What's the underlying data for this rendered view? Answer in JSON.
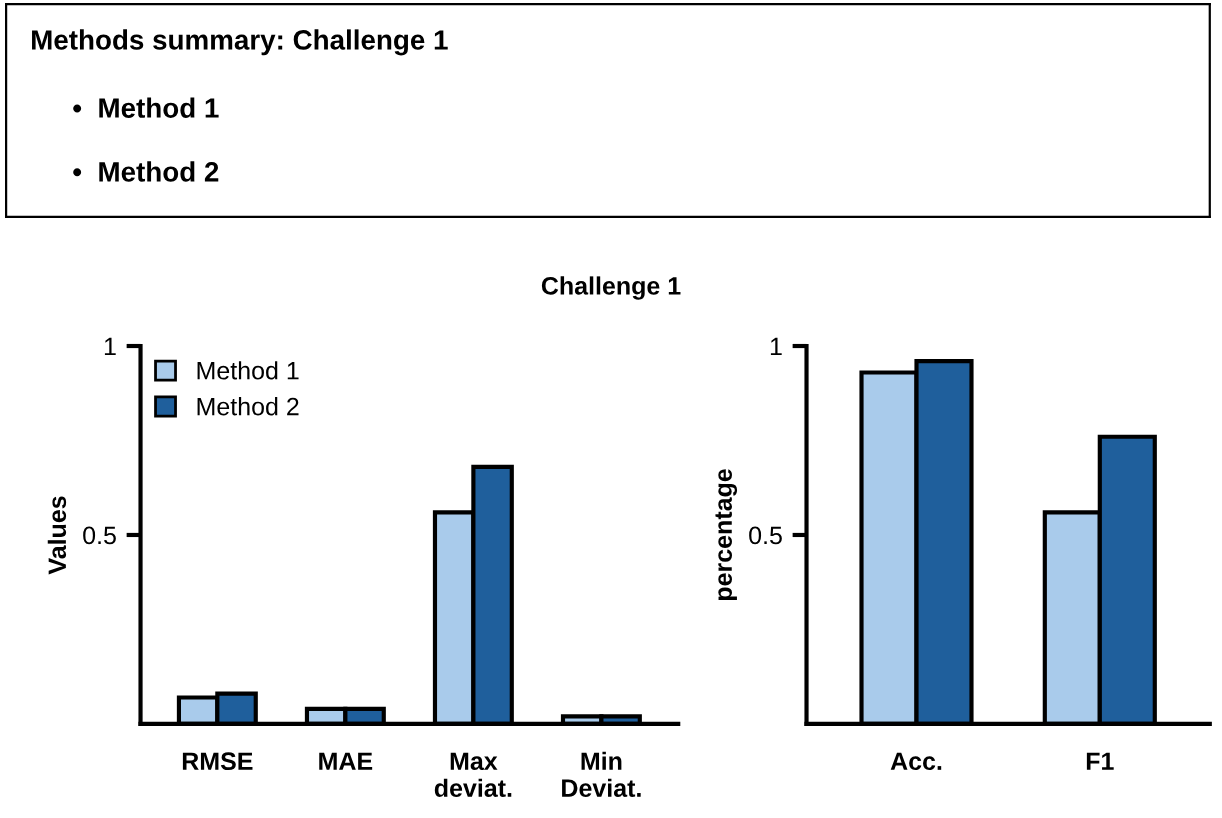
{
  "chart_data": [
    {
      "type": "bar",
      "title": "Challenge 1",
      "ylabel": "Values",
      "categories": [
        "RMSE",
        "MAE",
        "Max\ndeviat.",
        "Min\nDeviat."
      ],
      "series": [
        {
          "name": "Method 1",
          "color": "#a9cbeb",
          "values": [
            0.07,
            0.04,
            0.56,
            0.02
          ]
        },
        {
          "name": "Method 2",
          "color": "#1f5f9c",
          "values": [
            0.08,
            0.04,
            0.68,
            0.02
          ]
        }
      ],
      "ylim": [
        0,
        1
      ],
      "yticks": [
        0.5,
        1
      ],
      "legend": "top left",
      "grid": false
    },
    {
      "type": "bar",
      "ylabel": "percentage",
      "categories": [
        "Acc.",
        "F1"
      ],
      "annotations": [
        "Methods summary: Challenge 1",
        "•  Method 1",
        "•  Method 2"
      ],
      "series": [
        {
          "color": "#a9cbeb",
          "values": [
            0.93,
            0.56
          ]
        },
        {
          "color": "#1f5f9c",
          "values": [
            0.96,
            0.76
          ]
        }
      ],
      "ylim": [
        0,
        1
      ],
      "yticks": [
        0.5,
        1
      ],
      "grid": false
    }
  ]
}
